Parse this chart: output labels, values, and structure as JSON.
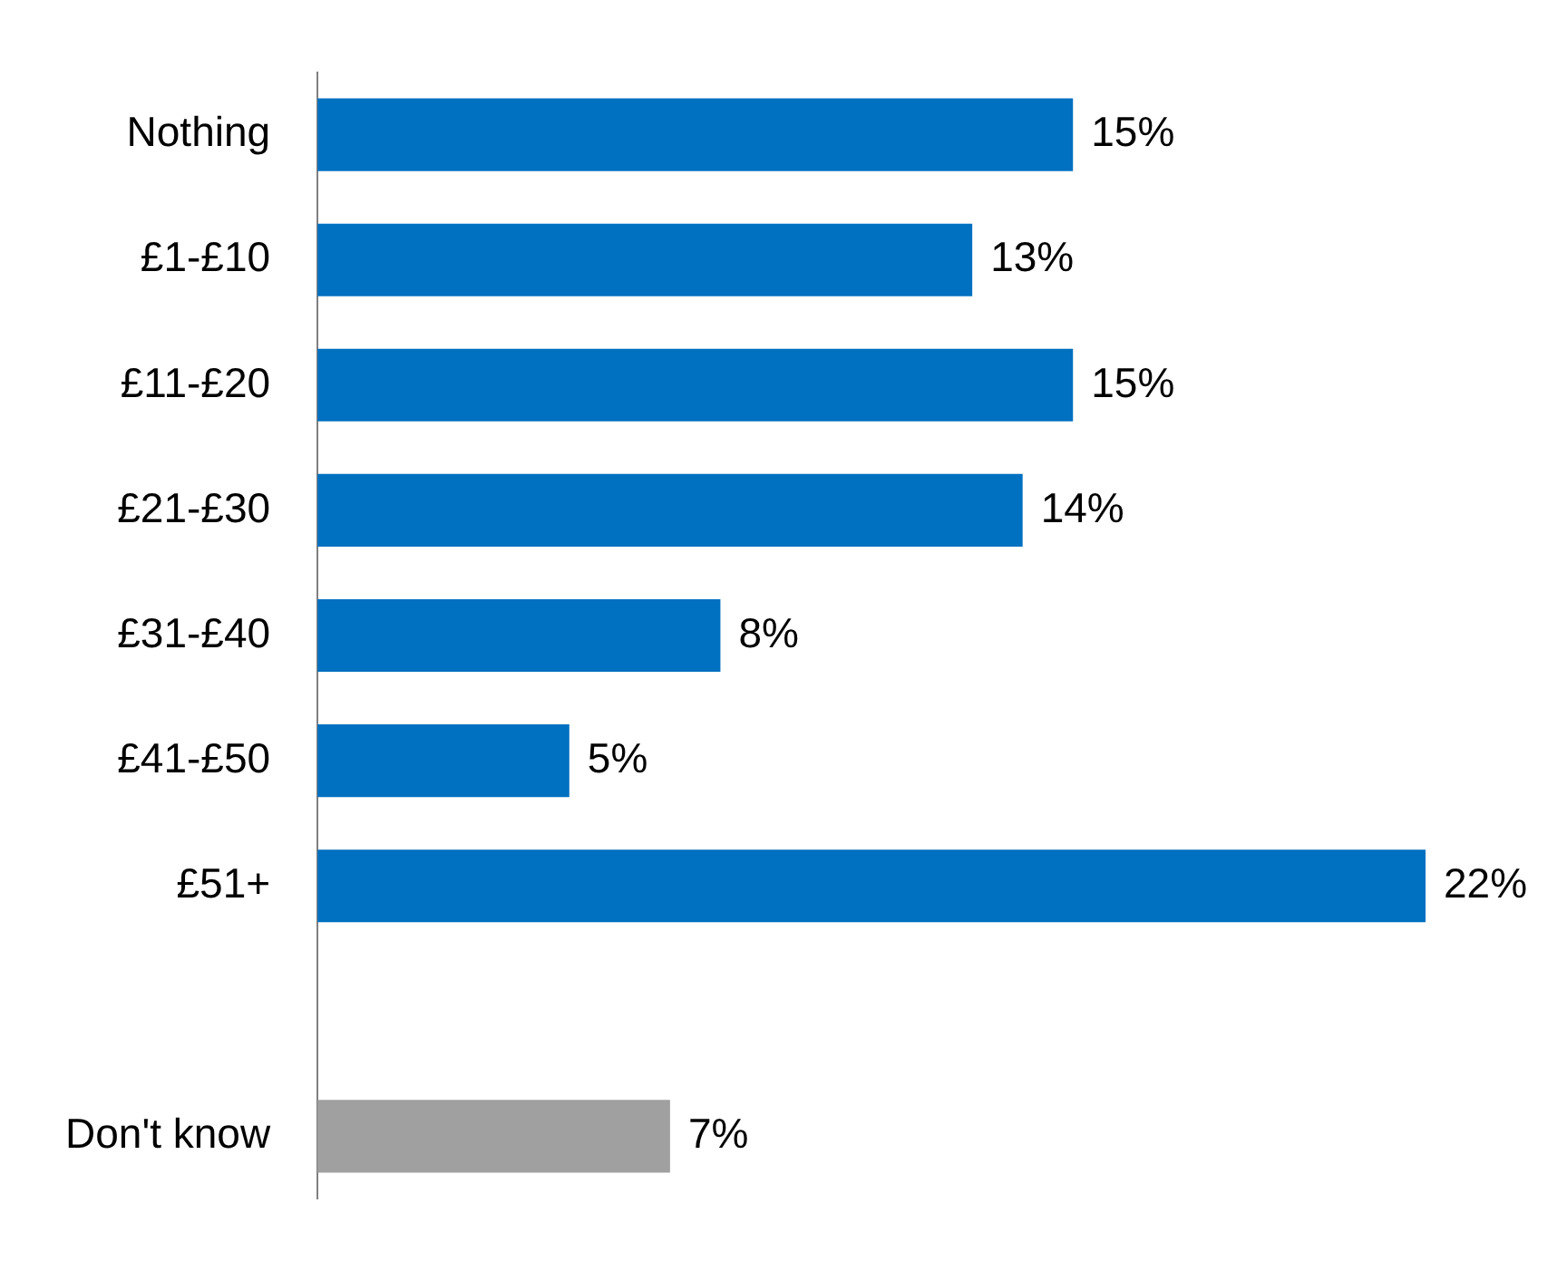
{
  "chart_data": {
    "type": "bar",
    "orientation": "horizontal",
    "categories": [
      "Nothing",
      "£1-£10",
      "£11-£20",
      "£21-£30",
      "£31-£40",
      "£41-£50",
      "£51+",
      null,
      "Don't know"
    ],
    "values": [
      15,
      13,
      15,
      14,
      8,
      5,
      22,
      null,
      7
    ],
    "colors": [
      "#0070c0",
      "#0070c0",
      "#0070c0",
      "#0070c0",
      "#0070c0",
      "#0070c0",
      "#0070c0",
      "#0070c0",
      "#a0a0a0"
    ],
    "value_labels": [
      "15%",
      "13%",
      "15%",
      "14%",
      "8%",
      "5%",
      "22%",
      null,
      "7%"
    ],
    "xlim": [
      0,
      22
    ],
    "tick_labels": "y",
    "legend": false
  }
}
